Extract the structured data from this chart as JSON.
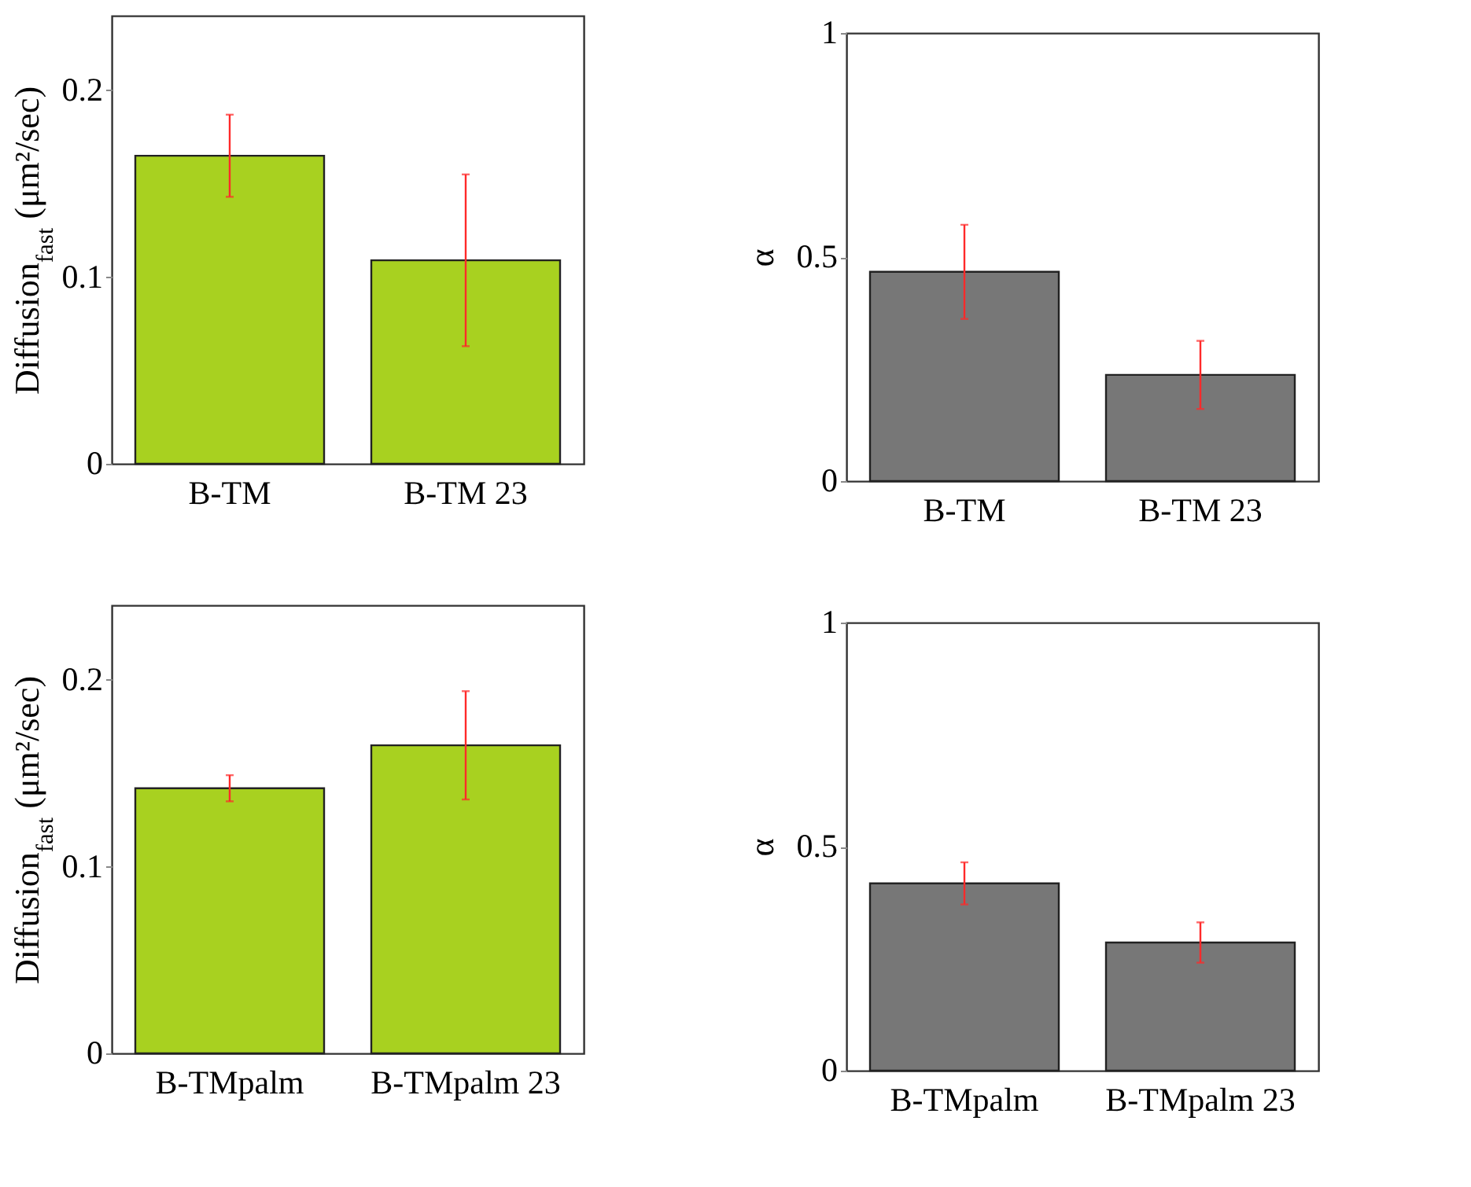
{
  "chart_data": [
    {
      "type": "bar",
      "categories": [
        "B-TM",
        "B-TM 23"
      ],
      "values": [
        0.165,
        0.109
      ],
      "errors": [
        0.022,
        0.046
      ],
      "color": "#a8d120",
      "ylabel": "Diffusion$_{fast}$ (μm²/sec)",
      "ylim": [
        0,
        0.24
      ],
      "yticks": [
        0,
        0.1,
        0.2
      ]
    },
    {
      "type": "bar",
      "categories": [
        "B-TM",
        "B-TM 23"
      ],
      "values": [
        0.467,
        0.237
      ],
      "errors": [
        0.105,
        0.076
      ],
      "color": "#777777",
      "ylabel": "α",
      "ylim": [
        0,
        1
      ],
      "yticks": [
        0,
        0.5,
        1
      ]
    },
    {
      "type": "bar",
      "categories": [
        "B-TMpalm",
        "B-TMpalm 23"
      ],
      "values": [
        0.142,
        0.165
      ],
      "errors": [
        0.007,
        0.029
      ],
      "color": "#a8d120",
      "ylabel": "Diffusion$_{fast}$ (μm²/sec)",
      "ylim": [
        0,
        0.24
      ],
      "yticks": [
        0,
        0.1,
        0.2
      ]
    },
    {
      "type": "bar",
      "categories": [
        "B-TMpalm",
        "B-TMpalm 23"
      ],
      "values": [
        0.418,
        0.286
      ],
      "errors": [
        0.047,
        0.045
      ],
      "color": "#777777",
      "ylabel": "α",
      "ylim": [
        0,
        1
      ],
      "yticks": [
        0,
        0.5,
        1
      ]
    }
  ]
}
